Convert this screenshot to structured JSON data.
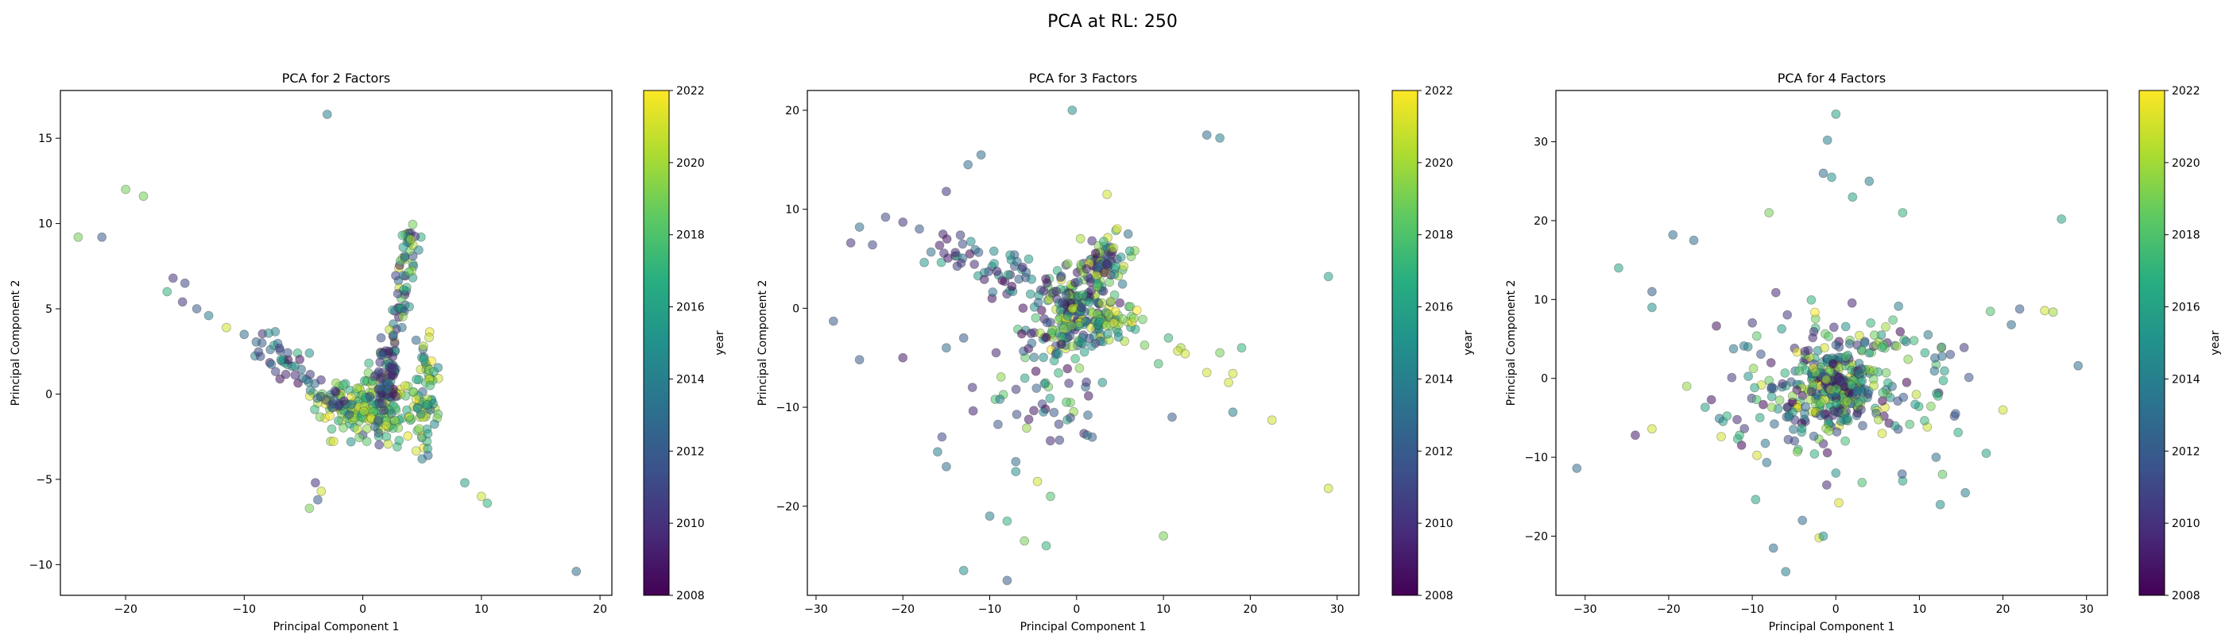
{
  "suptitle": "PCA at RL: 250",
  "colorbar": {
    "label": "year",
    "min": 2008,
    "max": 2022,
    "ticks": [
      "2008",
      "2010",
      "2012",
      "2014",
      "2016",
      "2018",
      "2020",
      "2022"
    ],
    "colormap": "viridis"
  },
  "chart_data": [
    {
      "type": "scatter",
      "title": "PCA for 2 Factors",
      "xlabel": "Principal Component 1",
      "ylabel": "Principal Component 2",
      "xlim": [
        -25.5,
        21
      ],
      "ylim": [
        -11.8,
        17.8
      ],
      "xticks": [
        -20,
        -10,
        0,
        10,
        20
      ],
      "yticks": [
        -10,
        -5,
        0,
        5,
        10,
        15
      ],
      "grid": false,
      "marker_alpha": 0.55,
      "seed": 11,
      "outliers": [
        [
          -3,
          16.4,
          2014
        ],
        [
          -20,
          12,
          2019
        ],
        [
          -18.5,
          11.6,
          2019
        ],
        [
          -24,
          9.2,
          2019
        ],
        [
          -22,
          9.2,
          2012
        ],
        [
          -16,
          6.8,
          2010
        ],
        [
          -15,
          6.5,
          2011
        ],
        [
          -16.5,
          6,
          2017
        ],
        [
          -15.2,
          5.4,
          2010
        ],
        [
          -14,
          5,
          2012
        ],
        [
          -13,
          4.6,
          2014
        ],
        [
          -11.5,
          3.9,
          2021
        ],
        [
          -10,
          3.5,
          2013
        ],
        [
          -8.5,
          3,
          2012
        ],
        [
          -5.5,
          2.4,
          2017
        ],
        [
          -4.5,
          2.4,
          2015
        ],
        [
          5,
          -3.8,
          2014
        ],
        [
          5.5,
          -3.6,
          2013
        ],
        [
          -4,
          -5.2,
          2010
        ],
        [
          -3.5,
          -5.7,
          2021
        ],
        [
          -3.8,
          -6.2,
          2012
        ],
        [
          -4.5,
          -6.7,
          2019
        ],
        [
          8.6,
          -5.2,
          2016
        ],
        [
          10,
          -6,
          2021
        ],
        [
          10.5,
          -6.4,
          2017
        ],
        [
          18,
          -10.4,
          2013
        ],
        [
          -1,
          -2.8,
          2015
        ],
        [
          0,
          -2.4,
          2011
        ],
        [
          2,
          -2.5,
          2017
        ]
      ],
      "clusters": [
        {
          "n": 180,
          "cx": 0.5,
          "cy": -0.8,
          "sx": 2.0,
          "sy": 0.9,
          "ymin": 2016,
          "ymax": 2022
        },
        {
          "n": 55,
          "line": [
            [
              -9,
              3
            ],
            [
              -1,
              -1
            ]
          ],
          "jitter": 0.4,
          "ymin": 2008,
          "ymax": 2016
        },
        {
          "n": 90,
          "line": [
            [
              2,
              0
            ],
            [
              4,
              9.5
            ]
          ],
          "jitter": 0.45,
          "ymin": 2008,
          "ymax": 2022
        },
        {
          "n": 60,
          "cx": 5.3,
          "cy": 0.3,
          "sx": 0.55,
          "sy": 1.5,
          "ymin": 2012,
          "ymax": 2022
        },
        {
          "n": 40,
          "cx": 1.8,
          "cy": 0.3,
          "sx": 0.6,
          "sy": 1.5,
          "ymin": 2008,
          "ymax": 2014
        }
      ]
    },
    {
      "type": "scatter",
      "title": "PCA for 3 Factors",
      "xlabel": "Principal Component 1",
      "ylabel": "Principal Component 2",
      "xlim": [
        -31,
        32.5
      ],
      "ylim": [
        -29,
        22
      ],
      "xticks": [
        -30,
        -20,
        -10,
        0,
        10,
        20,
        30
      ],
      "yticks": [
        -20,
        -10,
        0,
        10,
        20
      ],
      "grid": false,
      "marker_alpha": 0.55,
      "seed": 23,
      "outliers": [
        [
          -0.5,
          20,
          2015
        ],
        [
          15,
          17.5,
          2013
        ],
        [
          16.5,
          17.2,
          2014
        ],
        [
          -11,
          15.5,
          2013
        ],
        [
          -12.5,
          14.5,
          2013
        ],
        [
          -15,
          11.8,
          2010
        ],
        [
          3.5,
          11.5,
          2021
        ],
        [
          -25,
          8.2,
          2013
        ],
        [
          -22,
          9.2,
          2011
        ],
        [
          -20,
          8.7,
          2010
        ],
        [
          -26,
          6.6,
          2010
        ],
        [
          -23.5,
          6.4,
          2011
        ],
        [
          -28,
          -1.3,
          2012
        ],
        [
          -25,
          -5.2,
          2012
        ],
        [
          -20,
          -5,
          2009
        ],
        [
          29,
          3.2,
          2016
        ],
        [
          12,
          -4,
          2020
        ],
        [
          12.5,
          -4.6,
          2021
        ],
        [
          16.5,
          -4.5,
          2019
        ],
        [
          19,
          -4,
          2017
        ],
        [
          15,
          -6.5,
          2021
        ],
        [
          17.5,
          -7.5,
          2021
        ],
        [
          18,
          -6.6,
          2021
        ],
        [
          18,
          -10.5,
          2014
        ],
        [
          11,
          -11,
          2012
        ],
        [
          22.5,
          -11.3,
          2021
        ],
        [
          29,
          -18.2,
          2021
        ],
        [
          10,
          -23,
          2019
        ],
        [
          -10,
          -21,
          2014
        ],
        [
          -8,
          -21.5,
          2017
        ],
        [
          -13,
          -26.5,
          2015
        ],
        [
          -8,
          -27.5,
          2012
        ],
        [
          -3.5,
          -24,
          2017
        ],
        [
          -6,
          -23.5,
          2019
        ],
        [
          -3,
          -19,
          2018
        ],
        [
          -4.5,
          -17.5,
          2021
        ],
        [
          -7,
          -15.5,
          2013
        ],
        [
          -7,
          -16.5,
          2015
        ],
        [
          -15.5,
          -13,
          2011
        ],
        [
          -15,
          -16,
          2013
        ],
        [
          -16,
          -14.5,
          2014
        ],
        [
          -12,
          -8,
          2010
        ],
        [
          -13,
          -3,
          2012
        ],
        [
          -15,
          -4,
          2013
        ]
      ],
      "clusters": [
        {
          "n": 200,
          "cx": 0,
          "cy": -0.5,
          "sx": 2.3,
          "sy": 2.0,
          "ymin": 2008,
          "ymax": 2022
        },
        {
          "n": 70,
          "cx": 3,
          "cy": 5,
          "sx": 1.4,
          "sy": 1.2,
          "ymin": 2008,
          "ymax": 2022
        },
        {
          "n": 60,
          "line": [
            [
              -17,
              6.5
            ],
            [
              -2,
              1.5
            ]
          ],
          "jitter": 0.9,
          "ymin": 2008,
          "ymax": 2017
        },
        {
          "n": 60,
          "cx": -4,
          "cy": -8,
          "sx": 3.2,
          "sy": 3.5,
          "ymin": 2008,
          "ymax": 2020
        },
        {
          "n": 40,
          "cx": 4.5,
          "cy": -2,
          "sx": 2.5,
          "sy": 1.2,
          "ymin": 2014,
          "ymax": 2022
        }
      ]
    },
    {
      "type": "scatter",
      "title": "PCA for 4 Factors",
      "xlabel": "Principal Component 1",
      "ylabel": "Principal Component 2",
      "xlim": [
        -33.5,
        32.5
      ],
      "ylim": [
        -27.5,
        36.5
      ],
      "xticks": [
        -30,
        -20,
        -10,
        0,
        10,
        20,
        30
      ],
      "yticks": [
        -20,
        -10,
        0,
        10,
        20,
        30
      ],
      "grid": false,
      "marker_alpha": 0.55,
      "seed": 37,
      "outliers": [
        [
          0,
          33.5,
          2016
        ],
        [
          -1,
          30.2,
          2014
        ],
        [
          -1.5,
          26,
          2013
        ],
        [
          -0.5,
          25.5,
          2015
        ],
        [
          4,
          25,
          2014
        ],
        [
          2,
          23,
          2016
        ],
        [
          8,
          21,
          2017
        ],
        [
          27,
          20.2,
          2016
        ],
        [
          -19.5,
          18.2,
          2013
        ],
        [
          -17,
          17.5,
          2013
        ],
        [
          -26,
          14,
          2016
        ],
        [
          -8,
          21,
          2019
        ],
        [
          -31,
          -11.4,
          2013
        ],
        [
          -22,
          11,
          2012
        ],
        [
          -22,
          9,
          2015
        ],
        [
          29,
          1.6,
          2013
        ],
        [
          26,
          8.4,
          2020
        ],
        [
          25,
          8.6,
          2021
        ],
        [
          22,
          8.8,
          2012
        ],
        [
          21,
          6.8,
          2013
        ],
        [
          18.5,
          8.5,
          2018
        ],
        [
          -24,
          -7.2,
          2009
        ],
        [
          -22,
          -6.4,
          2021
        ],
        [
          -2,
          -20.2,
          2021
        ],
        [
          -1.5,
          -20,
          2015
        ],
        [
          -6,
          -24.5,
          2014
        ],
        [
          -4,
          -18,
          2013
        ],
        [
          15.5,
          -14.5,
          2014
        ],
        [
          12.5,
          -16,
          2015
        ],
        [
          8,
          -13,
          2016
        ],
        [
          18,
          -9.5,
          2016
        ],
        [
          20,
          -4,
          2021
        ],
        [
          12,
          -10,
          2013
        ],
        [
          0,
          -12,
          2015
        ]
      ],
      "clusters": [
        {
          "n": 230,
          "cx": 0,
          "cy": -1,
          "sx": 2.2,
          "sy": 2.6,
          "ymin": 2008,
          "ymax": 2022
        },
        {
          "n": 110,
          "cx": 0,
          "cy": 0,
          "sx": 7.5,
          "sy": 6.5,
          "ymin": 2008,
          "ymax": 2022
        },
        {
          "n": 55,
          "cx": -6,
          "cy": -4,
          "sx": 5.5,
          "sy": 2.8,
          "ymin": 2008,
          "ymax": 2020
        },
        {
          "n": 50,
          "cx": 9,
          "cy": 0,
          "sx": 5,
          "sy": 4,
          "ymin": 2010,
          "ymax": 2022
        }
      ]
    }
  ]
}
